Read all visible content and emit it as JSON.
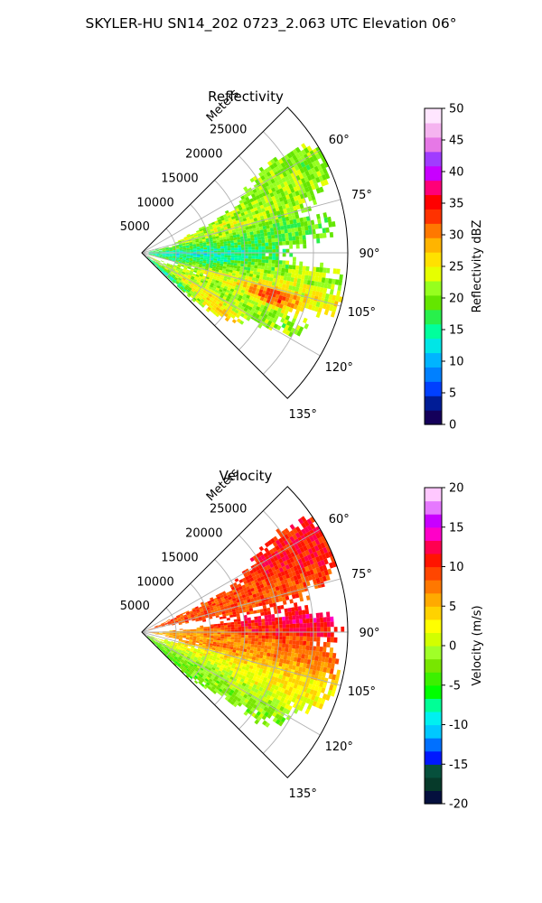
{
  "suptitle": "SKYLER-HU  SN14_202  0723_2.063 UTC Elevation 06°",
  "colors": {
    "grid": "#b0b0b0",
    "frame": "#000000",
    "refl_cmap": [
      "#14005a",
      "#001c96",
      "#0040ff",
      "#0080ff",
      "#00b4ff",
      "#00e6e6",
      "#00ff9c",
      "#28f04b",
      "#64e600",
      "#96ff1e",
      "#e6ff00",
      "#ffe100",
      "#ffb400",
      "#ff7800",
      "#ff3200",
      "#ff0000",
      "#ff0078",
      "#c800ff",
      "#a03cff",
      "#e678e6",
      "#f5b4f0",
      "#ffe6ff"
    ],
    "vel_cmap": [
      "#05103e",
      "#063a2a",
      "#06503c",
      "#0018ff",
      "#0070ff",
      "#00c8ff",
      "#00f0f0",
      "#00ff96",
      "#00ff00",
      "#3cf000",
      "#78e600",
      "#a0ff28",
      "#d2ff00",
      "#ffff00",
      "#ffd200",
      "#ffaa00",
      "#ff7800",
      "#ff4600",
      "#ff1400",
      "#ff0050",
      "#ff00c8",
      "#c800ff",
      "#e678ff",
      "#ffc8ff"
    ]
  },
  "chart_data": [
    {
      "type": "heatmap",
      "subtype": "polar-sector",
      "title": "Reflectivity",
      "r_label": "Meters",
      "r_ticks": [
        5000,
        10000,
        15000,
        20000,
        25000
      ],
      "r_tick_labels": [
        "5000",
        "10000",
        "15000",
        "20000",
        "25000"
      ],
      "r_max": 30000,
      "theta_range_deg": [
        45,
        135
      ],
      "theta_ticks_deg": [
        60,
        75,
        90,
        105,
        120,
        135
      ],
      "theta_tick_labels": [
        "60°",
        "75°",
        "90°",
        "105°",
        "120°",
        "135°"
      ],
      "grid": true,
      "colorbar": {
        "label": "Reflectivity dBZ",
        "range": [
          0,
          50
        ],
        "ticks": [
          0,
          5,
          10,
          15,
          20,
          25,
          30,
          35,
          40,
          45,
          50
        ],
        "tick_labels": [
          "0",
          "5",
          "10",
          "15",
          "20",
          "25",
          "30",
          "35",
          "40",
          "45",
          "50"
        ]
      }
    },
    {
      "type": "heatmap",
      "subtype": "polar-sector",
      "title": "Velocity",
      "r_label": "Meters",
      "r_ticks": [
        5000,
        10000,
        15000,
        20000,
        25000
      ],
      "r_tick_labels": [
        "5000",
        "10000",
        "15000",
        "20000",
        "25000"
      ],
      "r_max": 30000,
      "theta_range_deg": [
        45,
        135
      ],
      "theta_ticks_deg": [
        60,
        75,
        90,
        105,
        120,
        135
      ],
      "theta_tick_labels": [
        "60°",
        "75°",
        "90°",
        "105°",
        "120°",
        "135°"
      ],
      "grid": true,
      "colorbar": {
        "label": "Velocity (m/s)",
        "range": [
          -20,
          20
        ],
        "ticks": [
          -20,
          -15,
          -10,
          -5,
          0,
          5,
          10,
          15,
          20
        ],
        "tick_labels": [
          "-20",
          "-15",
          "-10",
          "-5",
          "0",
          "5",
          "10",
          "15",
          "20"
        ]
      }
    }
  ]
}
